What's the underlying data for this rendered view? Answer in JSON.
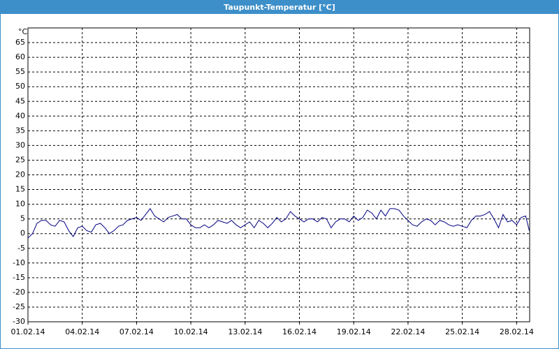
{
  "window_title": "Taupunkt-Temperatur [°C]",
  "chart_data": {
    "type": "line",
    "y_unit": "°C",
    "color": "#000080",
    "grid": true,
    "xlim": [
      1,
      28.72
    ],
    "ylim": [
      -30,
      70
    ],
    "xticks": [
      {
        "value": 1,
        "label": "01.02.14"
      },
      {
        "value": 4,
        "label": "04.02.14"
      },
      {
        "value": 7,
        "label": "07.02.14"
      },
      {
        "value": 10,
        "label": "10.02.14"
      },
      {
        "value": 13,
        "label": "13.02.14"
      },
      {
        "value": 16,
        "label": "16.02.14"
      },
      {
        "value": 19,
        "label": "19.02.14"
      },
      {
        "value": 22,
        "label": "22.02.14"
      },
      {
        "value": 25,
        "label": "25.02.14"
      },
      {
        "value": 28,
        "label": "28.02.14"
      }
    ],
    "yticks": [
      -30,
      -25,
      -20,
      -15,
      -10,
      -5,
      0,
      5,
      10,
      15,
      20,
      25,
      30,
      35,
      40,
      45,
      50,
      55,
      60,
      65
    ],
    "x": [
      1,
      1.25,
      1.5,
      1.75,
      2,
      2.25,
      2.5,
      2.75,
      3,
      3.25,
      3.5,
      3.75,
      4,
      4.25,
      4.5,
      4.75,
      5,
      5.25,
      5.5,
      5.75,
      6,
      6.25,
      6.5,
      6.75,
      7,
      7.25,
      7.5,
      7.75,
      8,
      8.25,
      8.5,
      8.75,
      9,
      9.25,
      9.5,
      9.75,
      10,
      10.25,
      10.5,
      10.75,
      11,
      11.25,
      11.5,
      11.75,
      12,
      12.25,
      12.5,
      12.75,
      13,
      13.25,
      13.5,
      13.75,
      14,
      14.25,
      14.5,
      14.75,
      15,
      15.25,
      15.5,
      15.75,
      16,
      16.25,
      16.5,
      16.75,
      17,
      17.25,
      17.5,
      17.75,
      18,
      18.25,
      18.5,
      18.75,
      19,
      19.25,
      19.5,
      19.75,
      20,
      20.25,
      20.5,
      20.75,
      21,
      21.25,
      21.5,
      21.75,
      22,
      22.25,
      22.5,
      22.75,
      23,
      23.25,
      23.5,
      23.75,
      24,
      24.25,
      24.5,
      24.75,
      25,
      25.25,
      25.5,
      25.75,
      26,
      26.25,
      26.5,
      26.75,
      27,
      27.25,
      27.5,
      27.75,
      28,
      28.25,
      28.5,
      28.7
    ],
    "values": [
      -1.5,
      0,
      3.5,
      4.5,
      4.5,
      3,
      2.5,
      4.5,
      4,
      1,
      -1,
      2,
      2.5,
      1,
      0.5,
      3,
      3.5,
      2,
      0,
      1,
      2.5,
      3,
      4.5,
      5,
      5.5,
      4.5,
      6.5,
      8.5,
      6,
      5,
      4,
      5.5,
      6,
      6.5,
      5,
      5,
      3,
      2,
      2,
      3,
      2,
      3,
      4.5,
      4,
      3.5,
      4.5,
      3,
      2,
      3,
      4,
      2,
      4.5,
      3.5,
      2,
      3.5,
      5.5,
      4,
      5,
      7.5,
      6,
      5,
      4,
      5,
      5,
      4,
      5.5,
      5,
      2,
      4,
      5,
      5,
      4,
      6,
      4.5,
      5.5,
      8,
      7,
      5,
      8,
      6,
      8.5,
      8.5,
      8,
      6,
      4.5,
      3,
      2.5,
      4,
      5,
      4.5,
      3,
      4.5,
      4,
      3,
      2.5,
      3,
      2.5,
      2,
      4.5,
      6,
      6,
      6.5,
      7.5,
      5,
      2,
      6.5,
      4,
      4.5,
      3,
      5.5,
      6,
      1
    ]
  }
}
